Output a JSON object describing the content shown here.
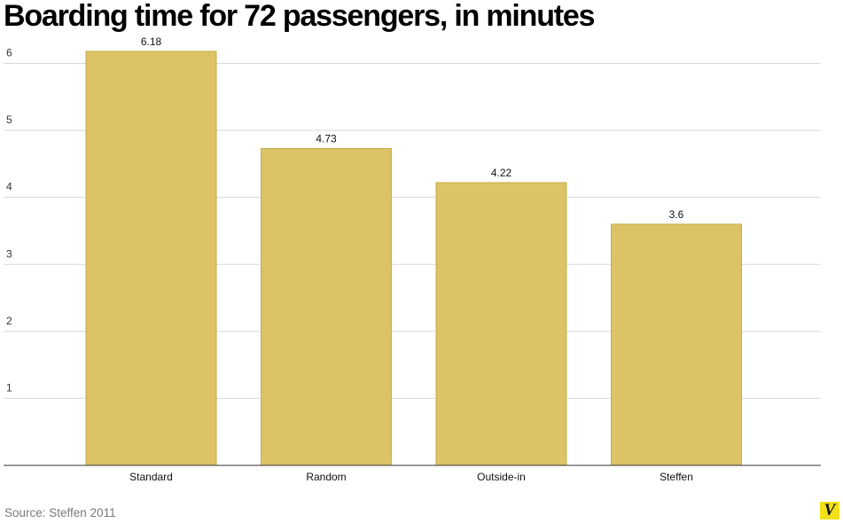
{
  "chart_data": {
    "type": "bar",
    "title": "Boarding time for 72 passengers, in minutes",
    "categories": [
      "Standard",
      "Random",
      "Outside-in",
      "Steffen"
    ],
    "values": [
      6.18,
      4.73,
      4.22,
      3.6
    ],
    "data_labels": [
      "6.18",
      "4.73",
      "4.22",
      "3.6"
    ],
    "y_ticks": [
      1,
      2,
      3,
      4,
      5,
      6
    ],
    "ylim": [
      0,
      6.2
    ],
    "grid": true,
    "bar_color": "#dcc365",
    "bar_edge_color": "#c9ad4a",
    "xlabel": "",
    "ylabel": ""
  },
  "source": "Source: Steffen 2011",
  "logo": "V",
  "colors": {
    "logo_bg": "#f2e11a"
  }
}
